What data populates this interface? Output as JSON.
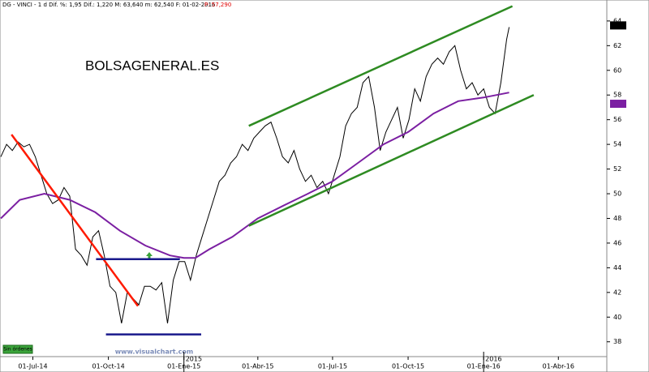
{
  "chart_data": {
    "type": "line",
    "header": "DG - VINCI - 1 d  Dif. %: 1,95  Dif.: 1,220  M: 63,640  m: 62,540  F: 01-02-2016",
    "header_price": "P: 57,290",
    "watermark": "BOLSAGENERAL.ES",
    "url": "www.visualchart.com",
    "button": "Sin órdenes",
    "xlim": [
      "2014-05-22",
      "2016-05-30"
    ],
    "ylim": [
      36.8,
      65.7
    ],
    "yticks": [
      38,
      40,
      42,
      44,
      46,
      48,
      50,
      52,
      54,
      56,
      58,
      60,
      62,
      64
    ],
    "xticks": [
      {
        "value": "2014-07-01",
        "label": "01-Jul-14"
      },
      {
        "value": "2014-10-01",
        "label": "01-Oct-14"
      },
      {
        "value": "2015-01-01",
        "label": "01-Ene-15"
      },
      {
        "value": "2015-04-01",
        "label": "01-Abr-15"
      },
      {
        "value": "2015-07-01",
        "label": "01-Jul-15"
      },
      {
        "value": "2015-10-01",
        "label": "01-Oct-15"
      },
      {
        "value": "2016-01-01",
        "label": "01-Ene-16"
      },
      {
        "value": "2016-04-01",
        "label": "01-Abr-16"
      }
    ],
    "year_markers": [
      {
        "value": "2015-01-01",
        "label": "2015"
      },
      {
        "value": "2016-01-01",
        "label": "2016"
      }
    ],
    "last_price": 63.64,
    "ma_last": 57.29,
    "series": [
      {
        "color": "#000000",
        "x": [
          "2014-05-23",
          "2014-05-30",
          "2014-06-06",
          "2014-06-13",
          "2014-06-20",
          "2014-06-27",
          "2014-07-04",
          "2014-07-11",
          "2014-07-18",
          "2014-07-25",
          "2014-08-01",
          "2014-08-08",
          "2014-08-15",
          "2014-08-22",
          "2014-08-29",
          "2014-09-05",
          "2014-09-12",
          "2014-09-19",
          "2014-09-26",
          "2014-10-03",
          "2014-10-10",
          "2014-10-17",
          "2014-10-24",
          "2014-10-31",
          "2014-11-07",
          "2014-11-14",
          "2014-11-21",
          "2014-11-28",
          "2014-12-05",
          "2014-12-12",
          "2014-12-19",
          "2014-12-26",
          "2015-01-02",
          "2015-01-09",
          "2015-01-16",
          "2015-01-23",
          "2015-01-30",
          "2015-02-06",
          "2015-02-13",
          "2015-02-20",
          "2015-02-27",
          "2015-03-06",
          "2015-03-13",
          "2015-03-20",
          "2015-03-27",
          "2015-04-03",
          "2015-04-10",
          "2015-04-17",
          "2015-04-24",
          "2015-05-01",
          "2015-05-08",
          "2015-05-15",
          "2015-05-22",
          "2015-05-29",
          "2015-06-05",
          "2015-06-12",
          "2015-06-19",
          "2015-06-26",
          "2015-07-03",
          "2015-07-10",
          "2015-07-17",
          "2015-07-24",
          "2015-07-31",
          "2015-08-07",
          "2015-08-14",
          "2015-08-21",
          "2015-08-28",
          "2015-09-04",
          "2015-09-11",
          "2015-09-18",
          "2015-09-25",
          "2015-10-02",
          "2015-10-09",
          "2015-10-16",
          "2015-10-23",
          "2015-10-30",
          "2015-11-06",
          "2015-11-13",
          "2015-11-20",
          "2015-11-27",
          "2015-12-04",
          "2015-12-11",
          "2015-12-18",
          "2015-12-25",
          "2016-01-01",
          "2016-01-08",
          "2016-01-15",
          "2016-01-22",
          "2016-01-29",
          "2016-02-01"
        ],
        "values": [
          53.0,
          54.0,
          53.5,
          54.2,
          53.8,
          54.0,
          53.0,
          51.5,
          50.0,
          49.2,
          49.5,
          50.5,
          49.8,
          45.5,
          45.0,
          44.2,
          46.5,
          47.0,
          45.0,
          42.5,
          42.0,
          39.5,
          42.0,
          41.5,
          41.0,
          42.5,
          42.5,
          42.2,
          42.8,
          39.5,
          43.0,
          44.5,
          44.5,
          43.0,
          45.0,
          46.5,
          48.0,
          49.5,
          51.0,
          51.5,
          52.5,
          53.0,
          54.0,
          53.5,
          54.5,
          55.0,
          55.5,
          55.8,
          54.5,
          53.0,
          52.5,
          53.5,
          52.0,
          51.0,
          51.5,
          50.5,
          51.0,
          50.0,
          51.5,
          53.0,
          55.5,
          56.5,
          57.0,
          59.0,
          59.5,
          57.0,
          53.5,
          55.0,
          56.0,
          57.0,
          54.5,
          56.0,
          58.5,
          57.5,
          59.5,
          60.5,
          61.0,
          60.5,
          61.5,
          62.0,
          60.0,
          58.5,
          59.0,
          58.0,
          58.5,
          57.0,
          56.5,
          59.0,
          62.5,
          63.5
        ]
      },
      {
        "color": "#7b1fa2",
        "x": [
          "2014-05-23",
          "2014-06-15",
          "2014-07-15",
          "2014-08-15",
          "2014-09-15",
          "2014-10-15",
          "2014-11-15",
          "2014-12-15",
          "2015-01-01",
          "2015-01-15",
          "2015-02-01",
          "2015-03-01",
          "2015-04-01",
          "2015-05-01",
          "2015-06-01",
          "2015-07-01",
          "2015-08-01",
          "2015-09-01",
          "2015-10-01",
          "2015-11-01",
          "2015-12-01",
          "2016-01-01",
          "2016-02-01"
        ],
        "values": [
          48.0,
          49.5,
          50.0,
          49.5,
          48.5,
          47.0,
          45.8,
          45.0,
          44.8,
          44.8,
          45.5,
          46.5,
          48.0,
          49.0,
          50.0,
          51.0,
          52.5,
          54.0,
          55.0,
          56.5,
          57.5,
          57.8,
          58.2
        ]
      }
    ],
    "lines": [
      {
        "color": "#2e8b22",
        "x": [
          "2015-03-21",
          "2016-02-05"
        ],
        "values": [
          55.5,
          65.2
        ]
      },
      {
        "color": "#2e8b22",
        "x": [
          "2015-03-21",
          "2016-03-02"
        ],
        "values": [
          47.4,
          58.0
        ]
      },
      {
        "color": "#ff1a00",
        "x": [
          "2014-06-05",
          "2014-11-06"
        ],
        "values": [
          54.8,
          40.9
        ]
      },
      {
        "color": "#1a1a8c",
        "x": [
          "2014-09-16",
          "2014-12-27"
        ],
        "values": [
          44.7,
          44.7
        ]
      },
      {
        "color": "#1a1a8c",
        "x": [
          "2014-09-28",
          "2015-01-22"
        ],
        "values": [
          38.6,
          38.6
        ]
      }
    ]
  }
}
